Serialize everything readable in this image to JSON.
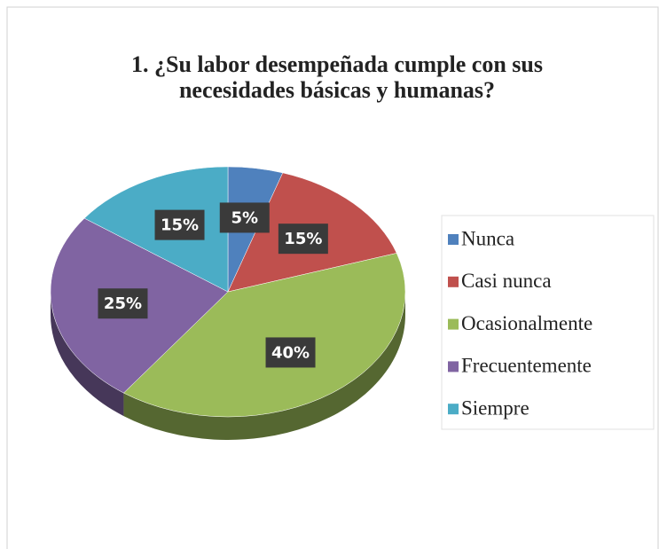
{
  "chart_data": {
    "type": "pie",
    "title": "1. ¿Su labor desempeñada cumple con sus necesidades básicas y humanas?",
    "categories": [
      "Nunca",
      "Casi nunca",
      "Ocasionalmente",
      "Frecuentemente",
      "Siempre"
    ],
    "values": [
      5,
      15,
      40,
      25,
      15
    ],
    "value_labels": [
      "5%",
      "15%",
      "40%",
      "25%",
      "15%"
    ],
    "colors": [
      "#4f81bd",
      "#c0504d",
      "#9bbb59",
      "#8064a2",
      "#4bacc6"
    ],
    "legend": "right"
  }
}
